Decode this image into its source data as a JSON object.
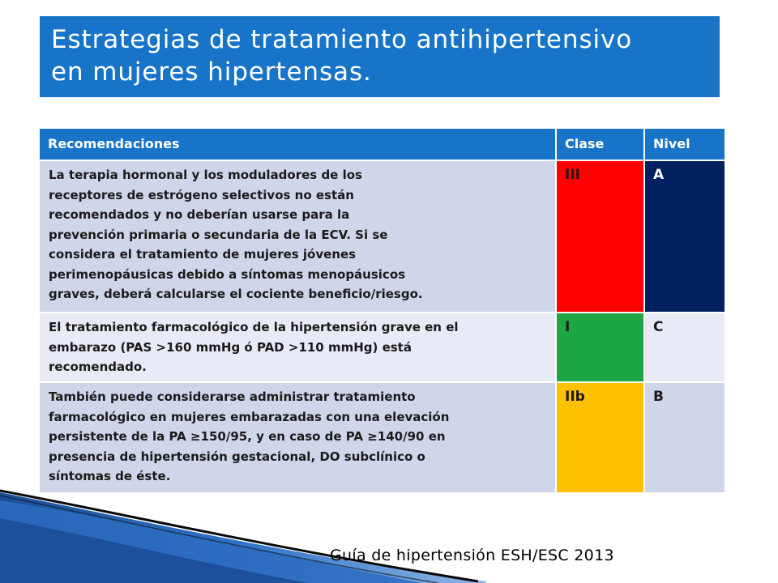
{
  "title": {
    "lines": [
      "Estrategias de tratamiento antihipertensivo",
      "en mujeres hipertensas."
    ]
  },
  "table": {
    "headers": [
      "Recomendaciones",
      "Clase",
      "Nivel"
    ],
    "rows": [
      {
        "lines": [
          "La terapia hormonal y los moduladores de los",
          "receptores de estrógeno selectivos no están",
          "recomendados y no deberían usarse para la",
          "prevención primaria o secundaria de la ECV. Si se",
          "considera el tratamiento de mujeres jóvenes",
          "perimenopáusicas debido a síntomas menopáusicos",
          "graves, deberá calcularse el cociente beneficio/riesgo."
        ],
        "clase": "III",
        "nivel": "A",
        "clase_color": "#ff0000",
        "nivel_color": "#002060"
      },
      {
        "lines": [
          "El tratamiento farmacológico de la hipertensión grave en el",
          "embarazo (PAS >160 mmHg ó PAD >110 mmHg) está",
          "recomendado."
        ],
        "clase": "I",
        "nivel": "C",
        "clase_color": "#1ea544"
      },
      {
        "lines": [
          "También puede considerarse administrar tratamiento",
          "farmacológico en mujeres embarazadas con una elevación",
          "persistente de la PA ≥150/95, y en caso de PA ≥140/90 en",
          "presencia de hipertensión gestacional, DO subclínico o",
          "síntomas de éste."
        ],
        "clase": "IIb",
        "nivel": "B",
        "clase_color": "#ffc000"
      }
    ]
  },
  "footer": "Guía de hipertensión ESH/ESC 2013",
  "colors": {
    "header_blue": "#1874c8",
    "row_light": "#e8ebf5",
    "row_mid": "#cfd6e9"
  }
}
